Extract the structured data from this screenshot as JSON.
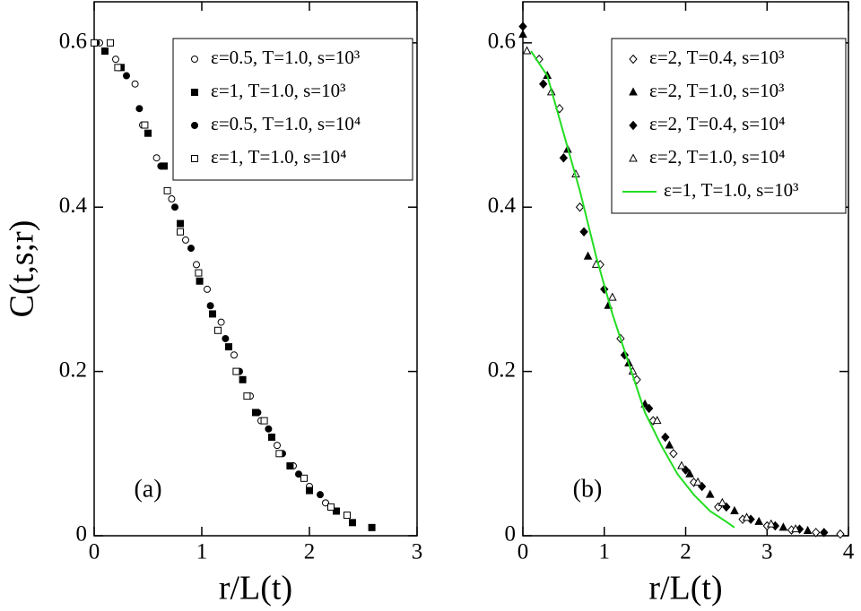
{
  "chart_data": [
    {
      "type": "scatter",
      "annotation": "(a)",
      "xlabel": "r/L(t)",
      "ylabel": "C(t,s;r)",
      "xlim": [
        0,
        3
      ],
      "xticks": [
        0,
        1,
        2,
        3
      ],
      "ylim": [
        0,
        0.65
      ],
      "yticks": [
        0,
        0.2,
        0.4,
        0.6
      ],
      "legend": "upper right",
      "series": [
        {
          "name": "ε=0.5, T=1.0, s=10³",
          "marker": "circle",
          "filled": false,
          "color": "#000000",
          "x": [
            0.05,
            0.2,
            0.38,
            0.45,
            0.58,
            0.72,
            0.85,
            0.95,
            1.05,
            1.18,
            1.3,
            1.45,
            1.55,
            1.7,
            1.85,
            2.0,
            2.15
          ],
          "values": [
            0.6,
            0.58,
            0.55,
            0.5,
            0.46,
            0.41,
            0.36,
            0.33,
            0.3,
            0.26,
            0.22,
            0.17,
            0.14,
            0.11,
            0.085,
            0.06,
            0.04
          ]
        },
        {
          "name": "ε=1, T=1.0, s=10³",
          "marker": "square",
          "filled": true,
          "color": "#000000",
          "x": [
            0.1,
            0.25,
            0.5,
            0.65,
            0.8,
            0.98,
            1.1,
            1.25,
            1.38,
            1.5,
            1.65,
            1.82,
            2.0,
            2.25,
            2.4,
            2.58
          ],
          "values": [
            0.59,
            0.57,
            0.49,
            0.45,
            0.38,
            0.31,
            0.27,
            0.23,
            0.19,
            0.15,
            0.12,
            0.085,
            0.055,
            0.03,
            0.016,
            0.01
          ]
        },
        {
          "name": "ε=0.5, T=1.0, s=10⁴",
          "marker": "circle",
          "filled": true,
          "color": "#000000",
          "x": [
            0.02,
            0.3,
            0.42,
            0.62,
            0.75,
            0.9,
            1.08,
            1.22,
            1.35,
            1.52,
            1.62,
            1.75,
            1.9,
            2.1
          ],
          "values": [
            0.6,
            0.56,
            0.52,
            0.45,
            0.4,
            0.35,
            0.28,
            0.24,
            0.2,
            0.15,
            0.13,
            0.1,
            0.075,
            0.05
          ]
        },
        {
          "name": "ε=1, T=1.0, s=10⁴",
          "marker": "square",
          "filled": false,
          "color": "#000000",
          "x": [
            0,
            0.15,
            0.22,
            0.47,
            0.68,
            0.8,
            0.97,
            1.15,
            1.32,
            1.42,
            1.58,
            1.72,
            1.95,
            2.2,
            2.35
          ],
          "values": [
            0.6,
            0.6,
            0.57,
            0.5,
            0.42,
            0.37,
            0.32,
            0.25,
            0.2,
            0.17,
            0.14,
            0.1,
            0.07,
            0.035,
            0.025
          ]
        }
      ]
    },
    {
      "type": "scatter",
      "annotation": "(b)",
      "xlabel": "r/L(t)",
      "xlim": [
        0,
        4
      ],
      "xticks": [
        0,
        1,
        2,
        3,
        4
      ],
      "ylim": [
        0,
        0.65
      ],
      "yticks": [
        0,
        0.2,
        0.4,
        0.6
      ],
      "legend": "upper right",
      "series": [
        {
          "name": "ε=2, T=0.4, s=10³",
          "marker": "diamond",
          "filled": false,
          "color": "#000000",
          "x": [
            0.2,
            0.45,
            0.7,
            0.95,
            1.2,
            1.4,
            1.6,
            1.85,
            2.1,
            2.4,
            2.7,
            3.0,
            3.3,
            3.6,
            3.9
          ],
          "values": [
            0.58,
            0.52,
            0.4,
            0.33,
            0.24,
            0.19,
            0.14,
            0.1,
            0.065,
            0.035,
            0.02,
            0.012,
            0.007,
            0.004,
            0.002
          ]
        },
        {
          "name": "ε=2, T=1.0, s=10³",
          "marker": "triangle",
          "filled": true,
          "color": "#000000",
          "x": [
            0,
            0.3,
            0.55,
            0.8,
            1.05,
            1.3,
            1.5,
            1.8,
            2.05,
            2.3,
            2.6,
            2.9,
            3.2,
            3.5
          ],
          "values": [
            0.61,
            0.56,
            0.47,
            0.34,
            0.28,
            0.21,
            0.16,
            0.11,
            0.075,
            0.05,
            0.03,
            0.017,
            0.01,
            0.006
          ]
        },
        {
          "name": "ε=2, T=0.4, s=10⁴",
          "marker": "diamond",
          "filled": true,
          "color": "#000000",
          "x": [
            0,
            0.25,
            0.5,
            0.75,
            1.0,
            1.25,
            1.55,
            1.75,
            2.0,
            2.2,
            2.5,
            2.8,
            3.1,
            3.4,
            3.7
          ],
          "values": [
            0.62,
            0.55,
            0.46,
            0.37,
            0.3,
            0.22,
            0.155,
            0.12,
            0.08,
            0.06,
            0.035,
            0.02,
            0.012,
            0.008,
            0.004
          ]
        },
        {
          "name": "ε=2, T=1.0, s=10⁴",
          "marker": "triangle",
          "filled": false,
          "color": "#000000",
          "x": [
            0.05,
            0.35,
            0.65,
            0.9,
            1.1,
            1.35,
            1.65,
            1.95,
            2.15,
            2.45,
            2.75,
            3.05,
            3.35
          ],
          "values": [
            0.59,
            0.54,
            0.44,
            0.33,
            0.29,
            0.2,
            0.14,
            0.085,
            0.065,
            0.04,
            0.022,
            0.014,
            0.008
          ]
        },
        {
          "name": "ε=1, T=1.0, s=10³",
          "marker": "line",
          "filled": false,
          "color": "#22dd22",
          "x": [
            0.1,
            0.3,
            0.5,
            0.7,
            0.9,
            1.1,
            1.3,
            1.5,
            1.7,
            1.9,
            2.1,
            2.3,
            2.5,
            2.6
          ],
          "values": [
            0.59,
            0.56,
            0.49,
            0.42,
            0.34,
            0.27,
            0.21,
            0.15,
            0.11,
            0.075,
            0.05,
            0.03,
            0.017,
            0.01
          ]
        }
      ]
    }
  ]
}
